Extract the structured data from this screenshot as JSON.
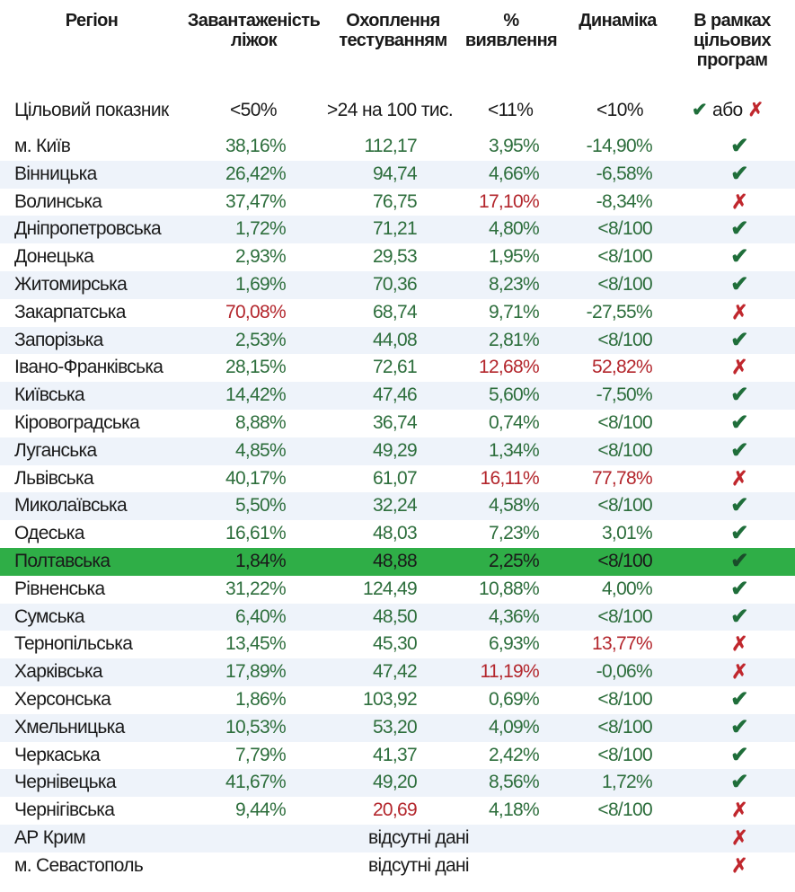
{
  "header": {
    "region": "Регіон",
    "beds": "Завантаженість\nліжок",
    "tests": "Охоплення\nтестуванням",
    "detection": "%\nвиявлення",
    "dynamics": "Динаміка",
    "programs": "В рамках\nцільових\nпрограм"
  },
  "targets": {
    "label": "Цільовий показник",
    "beds": "<50%",
    "tests": ">24 на 100 тис.",
    "detection": "<11%",
    "dynamics": "<10%",
    "legend_check": "✔",
    "legend_or": "або",
    "legend_cross": "✗"
  },
  "colors": {
    "good": "#2d6e3c",
    "bad": "#b3262c",
    "highlight": "#2fae47",
    "alt_row": "#eef3fa"
  },
  "rows": [
    {
      "region": "м. Київ",
      "beds": "38,16%",
      "beds_s": "good",
      "tests": "112,17",
      "tests_s": "good",
      "detection": "3,95%",
      "detection_s": "good",
      "dynamics": "-14,90%",
      "dynamics_s": "good",
      "program": "check"
    },
    {
      "region": "Вінницька",
      "beds": "26,42%",
      "beds_s": "good",
      "tests": "94,74",
      "tests_s": "good",
      "detection": "4,66%",
      "detection_s": "good",
      "dynamics": "-6,58%",
      "dynamics_s": "good",
      "program": "check"
    },
    {
      "region": "Волинська",
      "beds": "37,47%",
      "beds_s": "good",
      "tests": "76,75",
      "tests_s": "good",
      "detection": "17,10%",
      "detection_s": "bad",
      "dynamics": "-8,34%",
      "dynamics_s": "good",
      "program": "cross"
    },
    {
      "region": "Дніпропетровська",
      "beds": "1,72%",
      "beds_s": "good",
      "tests": "71,21",
      "tests_s": "good",
      "detection": "4,80%",
      "detection_s": "good",
      "dynamics": "<8/100",
      "dynamics_s": "good",
      "program": "check"
    },
    {
      "region": "Донецька",
      "beds": "2,93%",
      "beds_s": "good",
      "tests": "29,53",
      "tests_s": "good",
      "detection": "1,95%",
      "detection_s": "good",
      "dynamics": "<8/100",
      "dynamics_s": "good",
      "program": "check"
    },
    {
      "region": "Житомирська",
      "beds": "1,69%",
      "beds_s": "good",
      "tests": "70,36",
      "tests_s": "good",
      "detection": "8,23%",
      "detection_s": "good",
      "dynamics": "<8/100",
      "dynamics_s": "good",
      "program": "check"
    },
    {
      "region": "Закарпатська",
      "beds": "70,08%",
      "beds_s": "bad",
      "tests": "68,74",
      "tests_s": "good",
      "detection": "9,71%",
      "detection_s": "good",
      "dynamics": "-27,55%",
      "dynamics_s": "good",
      "program": "cross"
    },
    {
      "region": "Запорізька",
      "beds": "2,53%",
      "beds_s": "good",
      "tests": "44,08",
      "tests_s": "good",
      "detection": "2,81%",
      "detection_s": "good",
      "dynamics": "<8/100",
      "dynamics_s": "good",
      "program": "check"
    },
    {
      "region": "Івано-Франківська",
      "beds": "28,15%",
      "beds_s": "good",
      "tests": "72,61",
      "tests_s": "good",
      "detection": "12,68%",
      "detection_s": "bad",
      "dynamics": "52,82%",
      "dynamics_s": "bad",
      "program": "cross"
    },
    {
      "region": "Київська",
      "beds": "14,42%",
      "beds_s": "good",
      "tests": "47,46",
      "tests_s": "good",
      "detection": "5,60%",
      "detection_s": "good",
      "dynamics": "-7,50%",
      "dynamics_s": "good",
      "program": "check"
    },
    {
      "region": "Кіровоградська",
      "beds": "8,88%",
      "beds_s": "good",
      "tests": "36,74",
      "tests_s": "good",
      "detection": "0,74%",
      "detection_s": "good",
      "dynamics": "<8/100",
      "dynamics_s": "good",
      "program": "check"
    },
    {
      "region": "Луганська",
      "beds": "4,85%",
      "beds_s": "good",
      "tests": "49,29",
      "tests_s": "good",
      "detection": "1,34%",
      "detection_s": "good",
      "dynamics": "<8/100",
      "dynamics_s": "good",
      "program": "check"
    },
    {
      "region": "Львівська",
      "beds": "40,17%",
      "beds_s": "good",
      "tests": "61,07",
      "tests_s": "good",
      "detection": "16,11%",
      "detection_s": "bad",
      "dynamics": "77,78%",
      "dynamics_s": "bad",
      "program": "cross"
    },
    {
      "region": "Миколаївська",
      "beds": "5,50%",
      "beds_s": "good",
      "tests": "32,24",
      "tests_s": "good",
      "detection": "4,58%",
      "detection_s": "good",
      "dynamics": "<8/100",
      "dynamics_s": "good",
      "program": "check"
    },
    {
      "region": "Одеська",
      "beds": "16,61%",
      "beds_s": "good",
      "tests": "48,03",
      "tests_s": "good",
      "detection": "7,23%",
      "detection_s": "good",
      "dynamics": "3,01%",
      "dynamics_s": "good",
      "program": "check"
    },
    {
      "region": "Полтавська",
      "beds": "1,84%",
      "beds_s": "good",
      "tests": "48,88",
      "tests_s": "good",
      "detection": "2,25%",
      "detection_s": "good",
      "dynamics": "<8/100",
      "dynamics_s": "good",
      "program": "check",
      "highlight": true
    },
    {
      "region": "Рівненська",
      "beds": "31,22%",
      "beds_s": "good",
      "tests": "124,49",
      "tests_s": "good",
      "detection": "10,88%",
      "detection_s": "good",
      "dynamics": "4,00%",
      "dynamics_s": "good",
      "program": "check"
    },
    {
      "region": "Сумська",
      "beds": "6,40%",
      "beds_s": "good",
      "tests": "48,50",
      "tests_s": "good",
      "detection": "4,36%",
      "detection_s": "good",
      "dynamics": "<8/100",
      "dynamics_s": "good",
      "program": "check"
    },
    {
      "region": "Тернопільська",
      "beds": "13,45%",
      "beds_s": "good",
      "tests": "45,30",
      "tests_s": "good",
      "detection": "6,93%",
      "detection_s": "good",
      "dynamics": "13,77%",
      "dynamics_s": "bad",
      "program": "cross"
    },
    {
      "region": "Харківська",
      "beds": "17,89%",
      "beds_s": "good",
      "tests": "47,42",
      "tests_s": "good",
      "detection": "11,19%",
      "detection_s": "bad",
      "dynamics": "-0,06%",
      "dynamics_s": "good",
      "program": "cross"
    },
    {
      "region": "Херсонська",
      "beds": "1,86%",
      "beds_s": "good",
      "tests": "103,92",
      "tests_s": "good",
      "detection": "0,69%",
      "detection_s": "good",
      "dynamics": "<8/100",
      "dynamics_s": "good",
      "program": "check"
    },
    {
      "region": "Хмельницька",
      "beds": "10,53%",
      "beds_s": "good",
      "tests": "53,20",
      "tests_s": "good",
      "detection": "4,09%",
      "detection_s": "good",
      "dynamics": "<8/100",
      "dynamics_s": "good",
      "program": "check"
    },
    {
      "region": "Черкаська",
      "beds": "7,79%",
      "beds_s": "good",
      "tests": "41,37",
      "tests_s": "good",
      "detection": "2,42%",
      "detection_s": "good",
      "dynamics": "<8/100",
      "dynamics_s": "good",
      "program": "check"
    },
    {
      "region": "Чернівецька",
      "beds": "41,67%",
      "beds_s": "good",
      "tests": "49,20",
      "tests_s": "good",
      "detection": "8,56%",
      "detection_s": "good",
      "dynamics": "1,72%",
      "dynamics_s": "good",
      "program": "check"
    },
    {
      "region": "Чернігівська",
      "beds": "9,44%",
      "beds_s": "good",
      "tests": "20,69",
      "tests_s": "bad",
      "detection": "4,18%",
      "detection_s": "good",
      "dynamics": "<8/100",
      "dynamics_s": "good",
      "program": "cross"
    },
    {
      "region": "АР Крим",
      "nodata": "відсутні дані",
      "program": "cross"
    },
    {
      "region": "м. Севастополь",
      "nodata": "відсутні дані",
      "program": "cross"
    }
  ]
}
